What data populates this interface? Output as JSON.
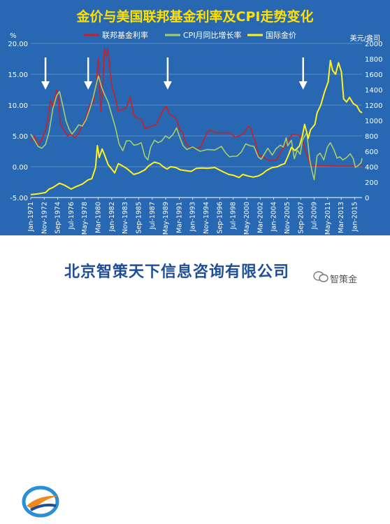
{
  "chart_data": {
    "type": "line",
    "title": "金价与美国联邦基金利率及CPI走势变化",
    "y_left_unit": "%",
    "y_right_unit": "美元/盎司",
    "y_left_lim": [
      -5,
      20
    ],
    "y_left_ticks": [
      "-5.00",
      "0.00",
      "5.00",
      "10.00",
      "15.00",
      "20.00"
    ],
    "y_right_lim": [
      0,
      2000
    ],
    "y_right_ticks": [
      "0",
      "200",
      "400",
      "600",
      "800",
      "1000",
      "1200",
      "1400",
      "1600",
      "1800",
      "2000"
    ],
    "x_lim": [
      1971,
      2016
    ],
    "x_ticks": [
      {
        "label": "Jan-1971",
        "x": 1971.0
      },
      {
        "label": "Nov-1972",
        "x": 1972.83
      },
      {
        "label": "Sep-1974",
        "x": 1974.67
      },
      {
        "label": "Jul-1976",
        "x": 1976.5
      },
      {
        "label": "May-1978",
        "x": 1978.33
      },
      {
        "label": "Mar-1980",
        "x": 1980.17
      },
      {
        "label": "Jan-1982",
        "x": 1982.0
      },
      {
        "label": "Nov-1983",
        "x": 1983.83
      },
      {
        "label": "Sep-1985",
        "x": 1985.67
      },
      {
        "label": "Jul-1987",
        "x": 1987.5
      },
      {
        "label": "May-1989",
        "x": 1989.33
      },
      {
        "label": "Mar-1991",
        "x": 1991.17
      },
      {
        "label": "Jan-1993",
        "x": 1993.0
      },
      {
        "label": "Nov-1994",
        "x": 1994.83
      },
      {
        "label": "Sep-1996",
        "x": 1996.67
      },
      {
        "label": "Jul-1998",
        "x": 1998.5
      },
      {
        "label": "May-2000",
        "x": 2000.33
      },
      {
        "label": "Mar-2002",
        "x": 2002.17
      },
      {
        "label": "Jan-2004",
        "x": 2004.0
      },
      {
        "label": "Nov-2005",
        "x": 2005.83
      },
      {
        "label": "Sep-2007",
        "x": 2007.67
      },
      {
        "label": "Jul-2009",
        "x": 2009.5
      },
      {
        "label": "May-2011",
        "x": 2011.33
      },
      {
        "label": "Mar-2013",
        "x": 2013.17
      },
      {
        "label": "Jan-2015",
        "x": 2015.0
      }
    ],
    "legend": "top",
    "grid": true,
    "series": [
      {
        "name": "联邦基金利率",
        "axis": "left",
        "color": "#cc1f26",
        "points": [
          [
            1971.0,
            4.2
          ],
          [
            1971.5,
            5.0
          ],
          [
            1972.0,
            3.5
          ],
          [
            1972.5,
            4.4
          ],
          [
            1973.0,
            5.9
          ],
          [
            1973.3,
            7.5
          ],
          [
            1973.7,
            10.8
          ],
          [
            1974.0,
            9.6
          ],
          [
            1974.5,
            12.5
          ],
          [
            1974.8,
            11.0
          ],
          [
            1975.0,
            7.1
          ],
          [
            1975.5,
            5.9
          ],
          [
            1976.0,
            5.0
          ],
          [
            1976.5,
            5.3
          ],
          [
            1977.0,
            4.7
          ],
          [
            1977.5,
            5.4
          ],
          [
            1978.0,
            6.8
          ],
          [
            1978.5,
            7.9
          ],
          [
            1979.0,
            10.1
          ],
          [
            1979.5,
            10.3
          ],
          [
            1979.9,
            13.8
          ],
          [
            1980.2,
            17.6
          ],
          [
            1980.5,
            9.0
          ],
          [
            1980.8,
            13.0
          ],
          [
            1981.0,
            19.1
          ],
          [
            1981.3,
            17.8
          ],
          [
            1981.5,
            19.1
          ],
          [
            1981.8,
            15.1
          ],
          [
            1982.0,
            13.2
          ],
          [
            1982.5,
            11.1
          ],
          [
            1982.9,
            9.0
          ],
          [
            1983.5,
            9.3
          ],
          [
            1984.0,
            9.6
          ],
          [
            1984.5,
            11.3
          ],
          [
            1985.0,
            8.4
          ],
          [
            1985.5,
            7.8
          ],
          [
            1986.0,
            7.8
          ],
          [
            1986.5,
            6.2
          ],
          [
            1987.0,
            6.4
          ],
          [
            1987.5,
            6.6
          ],
          [
            1988.0,
            6.8
          ],
          [
            1988.5,
            8.0
          ],
          [
            1989.0,
            9.2
          ],
          [
            1989.4,
            9.8
          ],
          [
            1989.8,
            8.6
          ],
          [
            1990.3,
            8.2
          ],
          [
            1990.8,
            7.7
          ],
          [
            1991.2,
            6.1
          ],
          [
            1991.6,
            5.6
          ],
          [
            1992.0,
            4.0
          ],
          [
            1992.5,
            3.3
          ],
          [
            1993.0,
            3.0
          ],
          [
            1993.9,
            3.0
          ],
          [
            1994.2,
            3.5
          ],
          [
            1994.6,
            4.6
          ],
          [
            1995.0,
            5.6
          ],
          [
            1995.5,
            6.0
          ],
          [
            1996.0,
            5.5
          ],
          [
            1997.0,
            5.5
          ],
          [
            1998.0,
            5.5
          ],
          [
            1998.8,
            4.8
          ],
          [
            1999.5,
            5.1
          ],
          [
            2000.0,
            5.5
          ],
          [
            2000.5,
            6.5
          ],
          [
            2000.9,
            6.4
          ],
          [
            2001.2,
            5.0
          ],
          [
            2001.6,
            3.7
          ],
          [
            2001.9,
            1.8
          ],
          [
            2002.5,
            1.7
          ],
          [
            2003.0,
            1.2
          ],
          [
            2003.6,
            1.0
          ],
          [
            2004.3,
            1.0
          ],
          [
            2004.7,
            1.8
          ],
          [
            2005.0,
            2.5
          ],
          [
            2005.5,
            3.3
          ],
          [
            2006.0,
            4.3
          ],
          [
            2006.5,
            5.2
          ],
          [
            2007.0,
            5.25
          ],
          [
            2007.6,
            5.0
          ],
          [
            2007.9,
            4.3
          ],
          [
            2008.2,
            3.0
          ],
          [
            2008.5,
            2.0
          ],
          [
            2008.9,
            0.5
          ],
          [
            2009.0,
            0.2
          ],
          [
            2012.0,
            0.1
          ],
          [
            2015.0,
            0.1
          ],
          [
            2015.9,
            0.13
          ],
          [
            2016.0,
            0.4
          ]
        ]
      },
      {
        "name": "CPI月同比增长率",
        "axis": "left",
        "color": "#a6cf6a",
        "points": [
          [
            1971.0,
            5.3
          ],
          [
            1971.5,
            4.3
          ],
          [
            1972.0,
            3.3
          ],
          [
            1972.5,
            3.0
          ],
          [
            1973.0,
            3.6
          ],
          [
            1973.5,
            5.7
          ],
          [
            1974.0,
            9.4
          ],
          [
            1974.5,
            11.5
          ],
          [
            1974.9,
            12.2
          ],
          [
            1975.3,
            10.2
          ],
          [
            1975.8,
            7.4
          ],
          [
            1976.2,
            6.1
          ],
          [
            1976.6,
            5.3
          ],
          [
            1977.0,
            5.9
          ],
          [
            1977.5,
            6.8
          ],
          [
            1978.0,
            6.6
          ],
          [
            1978.5,
            7.6
          ],
          [
            1979.0,
            9.3
          ],
          [
            1979.5,
            11.3
          ],
          [
            1980.0,
            13.9
          ],
          [
            1980.2,
            14.7
          ],
          [
            1980.6,
            13.0
          ],
          [
            1981.0,
            11.8
          ],
          [
            1981.5,
            10.5
          ],
          [
            1982.0,
            8.4
          ],
          [
            1982.5,
            6.4
          ],
          [
            1983.0,
            3.7
          ],
          [
            1983.5,
            2.6
          ],
          [
            1984.0,
            4.2
          ],
          [
            1984.5,
            4.2
          ],
          [
            1985.0,
            3.5
          ],
          [
            1985.5,
            3.6
          ],
          [
            1986.0,
            3.9
          ],
          [
            1986.5,
            1.7
          ],
          [
            1986.9,
            1.1
          ],
          [
            1987.3,
            3.2
          ],
          [
            1987.8,
            4.3
          ],
          [
            1988.3,
            3.9
          ],
          [
            1988.8,
            4.2
          ],
          [
            1989.3,
            5.0
          ],
          [
            1989.8,
            4.6
          ],
          [
            1990.3,
            5.2
          ],
          [
            1990.8,
            6.3
          ],
          [
            1991.2,
            4.9
          ],
          [
            1991.7,
            3.4
          ],
          [
            1992.2,
            2.8
          ],
          [
            1993.0,
            3.2
          ],
          [
            1994.0,
            2.5
          ],
          [
            1995.0,
            2.8
          ],
          [
            1996.0,
            2.7
          ],
          [
            1996.9,
            3.3
          ],
          [
            1997.5,
            2.2
          ],
          [
            1998.0,
            1.6
          ],
          [
            1998.5,
            1.7
          ],
          [
            1999.0,
            1.7
          ],
          [
            1999.6,
            2.4
          ],
          [
            2000.2,
            3.7
          ],
          [
            2000.8,
            3.4
          ],
          [
            2001.3,
            3.3
          ],
          [
            2001.9,
            1.6
          ],
          [
            2002.3,
            1.2
          ],
          [
            2002.8,
            2.2
          ],
          [
            2003.2,
            3.0
          ],
          [
            2003.8,
            1.9
          ],
          [
            2004.3,
            2.9
          ],
          [
            2004.9,
            3.5
          ],
          [
            2005.3,
            3.2
          ],
          [
            2005.7,
            4.7
          ],
          [
            2005.9,
            3.4
          ],
          [
            2006.4,
            4.3
          ],
          [
            2006.8,
            1.3
          ],
          [
            2007.2,
            2.7
          ],
          [
            2007.6,
            2.0
          ],
          [
            2007.9,
            4.3
          ],
          [
            2008.5,
            5.6
          ],
          [
            2008.9,
            1.1
          ],
          [
            2009.2,
            -0.7
          ],
          [
            2009.5,
            -2.1
          ],
          [
            2009.9,
            1.8
          ],
          [
            2010.3,
            2.2
          ],
          [
            2010.8,
            1.1
          ],
          [
            2011.3,
            3.2
          ],
          [
            2011.7,
            3.9
          ],
          [
            2012.2,
            2.7
          ],
          [
            2012.6,
            1.4
          ],
          [
            2013.0,
            1.6
          ],
          [
            2013.4,
            1.1
          ],
          [
            2013.9,
            1.5
          ],
          [
            2014.4,
            2.1
          ],
          [
            2014.8,
            1.3
          ],
          [
            2015.1,
            -0.1
          ],
          [
            2015.5,
            0.2
          ],
          [
            2015.9,
            0.7
          ],
          [
            2016.0,
            1.4
          ]
        ]
      },
      {
        "name": "国际金价",
        "axis": "right",
        "color": "#fff21f",
        "points": [
          [
            1971.0,
            38
          ],
          [
            1972.0,
            48
          ],
          [
            1973.0,
            65
          ],
          [
            1973.5,
            110
          ],
          [
            1974.0,
            130
          ],
          [
            1974.9,
            185
          ],
          [
            1975.5,
            165
          ],
          [
            1976.5,
            110
          ],
          [
            1977.0,
            135
          ],
          [
            1978.0,
            175
          ],
          [
            1978.8,
            230
          ],
          [
            1979.3,
            245
          ],
          [
            1979.8,
            390
          ],
          [
            1980.05,
            675
          ],
          [
            1980.3,
            520
          ],
          [
            1980.7,
            630
          ],
          [
            1981.0,
            560
          ],
          [
            1981.5,
            430
          ],
          [
            1982.4,
            320
          ],
          [
            1982.9,
            440
          ],
          [
            1983.3,
            420
          ],
          [
            1984.0,
            380
          ],
          [
            1985.0,
            300
          ],
          [
            1985.7,
            320
          ],
          [
            1986.5,
            360
          ],
          [
            1987.0,
            410
          ],
          [
            1987.8,
            460
          ],
          [
            1988.5,
            440
          ],
          [
            1989.0,
            400
          ],
          [
            1989.5,
            370
          ],
          [
            1990.0,
            400
          ],
          [
            1990.7,
            390
          ],
          [
            1991.3,
            360
          ],
          [
            1992.0,
            350
          ],
          [
            1992.8,
            340
          ],
          [
            1993.5,
            380
          ],
          [
            1994.3,
            385
          ],
          [
            1995.0,
            380
          ],
          [
            1996.0,
            390
          ],
          [
            1997.0,
            340
          ],
          [
            1997.9,
            300
          ],
          [
            1998.5,
            290
          ],
          [
            1999.3,
            260
          ],
          [
            1999.8,
            300
          ],
          [
            2000.5,
            280
          ],
          [
            2001.2,
            265
          ],
          [
            2001.9,
            280
          ],
          [
            2002.5,
            310
          ],
          [
            2003.0,
            350
          ],
          [
            2003.8,
            390
          ],
          [
            2004.5,
            400
          ],
          [
            2005.0,
            425
          ],
          [
            2005.5,
            440
          ],
          [
            2006.0,
            550
          ],
          [
            2006.4,
            650
          ],
          [
            2006.9,
            610
          ],
          [
            2007.5,
            670
          ],
          [
            2007.9,
            800
          ],
          [
            2008.2,
            950
          ],
          [
            2008.7,
            770
          ],
          [
            2009.0,
            880
          ],
          [
            2009.6,
            950
          ],
          [
            2009.9,
            1100
          ],
          [
            2010.4,
            1200
          ],
          [
            2010.9,
            1370
          ],
          [
            2011.4,
            1500
          ],
          [
            2011.7,
            1780
          ],
          [
            2012.0,
            1650
          ],
          [
            2012.4,
            1600
          ],
          [
            2012.8,
            1750
          ],
          [
            2013.2,
            1630
          ],
          [
            2013.5,
            1280
          ],
          [
            2013.9,
            1240
          ],
          [
            2014.3,
            1300
          ],
          [
            2014.8,
            1220
          ],
          [
            2015.3,
            1190
          ],
          [
            2015.7,
            1120
          ],
          [
            2016.0,
            1100
          ]
        ]
      }
    ],
    "arrows_at": [
      1973.0,
      1978.8,
      1989.6,
      2008.0
    ]
  },
  "footer": {
    "company": "北京智策天下信息咨询有限公司",
    "wechat": "智策金"
  }
}
